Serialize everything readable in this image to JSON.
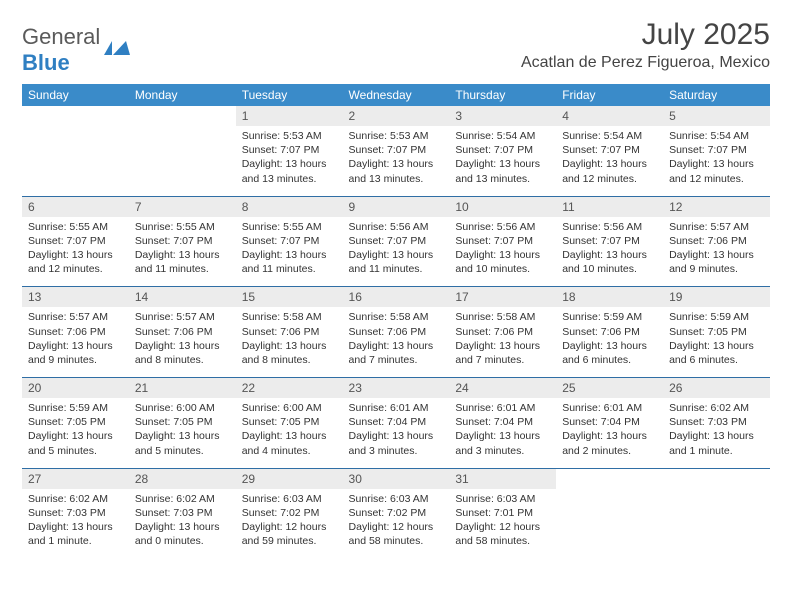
{
  "logo": {
    "text1": "General",
    "text2": "Blue"
  },
  "header": {
    "month": "July 2025",
    "location": "Acatlan de Perez Figueroa, Mexico"
  },
  "colors": {
    "header_bg": "#3a8bc9",
    "header_text": "#ffffff",
    "daynum_bg": "#ececec",
    "rule": "#2f6ea5",
    "brand_blue": "#2f7fc2",
    "text": "#333333"
  },
  "days_of_week": [
    "Sunday",
    "Monday",
    "Tuesday",
    "Wednesday",
    "Thursday",
    "Friday",
    "Saturday"
  ],
  "weeks": [
    [
      null,
      null,
      {
        "n": "1",
        "sunrise": "5:53 AM",
        "sunset": "7:07 PM",
        "daylight": "13 hours and 13 minutes."
      },
      {
        "n": "2",
        "sunrise": "5:53 AM",
        "sunset": "7:07 PM",
        "daylight": "13 hours and 13 minutes."
      },
      {
        "n": "3",
        "sunrise": "5:54 AM",
        "sunset": "7:07 PM",
        "daylight": "13 hours and 13 minutes."
      },
      {
        "n": "4",
        "sunrise": "5:54 AM",
        "sunset": "7:07 PM",
        "daylight": "13 hours and 12 minutes."
      },
      {
        "n": "5",
        "sunrise": "5:54 AM",
        "sunset": "7:07 PM",
        "daylight": "13 hours and 12 minutes."
      }
    ],
    [
      {
        "n": "6",
        "sunrise": "5:55 AM",
        "sunset": "7:07 PM",
        "daylight": "13 hours and 12 minutes."
      },
      {
        "n": "7",
        "sunrise": "5:55 AM",
        "sunset": "7:07 PM",
        "daylight": "13 hours and 11 minutes."
      },
      {
        "n": "8",
        "sunrise": "5:55 AM",
        "sunset": "7:07 PM",
        "daylight": "13 hours and 11 minutes."
      },
      {
        "n": "9",
        "sunrise": "5:56 AM",
        "sunset": "7:07 PM",
        "daylight": "13 hours and 11 minutes."
      },
      {
        "n": "10",
        "sunrise": "5:56 AM",
        "sunset": "7:07 PM",
        "daylight": "13 hours and 10 minutes."
      },
      {
        "n": "11",
        "sunrise": "5:56 AM",
        "sunset": "7:07 PM",
        "daylight": "13 hours and 10 minutes."
      },
      {
        "n": "12",
        "sunrise": "5:57 AM",
        "sunset": "7:06 PM",
        "daylight": "13 hours and 9 minutes."
      }
    ],
    [
      {
        "n": "13",
        "sunrise": "5:57 AM",
        "sunset": "7:06 PM",
        "daylight": "13 hours and 9 minutes."
      },
      {
        "n": "14",
        "sunrise": "5:57 AM",
        "sunset": "7:06 PM",
        "daylight": "13 hours and 8 minutes."
      },
      {
        "n": "15",
        "sunrise": "5:58 AM",
        "sunset": "7:06 PM",
        "daylight": "13 hours and 8 minutes."
      },
      {
        "n": "16",
        "sunrise": "5:58 AM",
        "sunset": "7:06 PM",
        "daylight": "13 hours and 7 minutes."
      },
      {
        "n": "17",
        "sunrise": "5:58 AM",
        "sunset": "7:06 PM",
        "daylight": "13 hours and 7 minutes."
      },
      {
        "n": "18",
        "sunrise": "5:59 AM",
        "sunset": "7:06 PM",
        "daylight": "13 hours and 6 minutes."
      },
      {
        "n": "19",
        "sunrise": "5:59 AM",
        "sunset": "7:05 PM",
        "daylight": "13 hours and 6 minutes."
      }
    ],
    [
      {
        "n": "20",
        "sunrise": "5:59 AM",
        "sunset": "7:05 PM",
        "daylight": "13 hours and 5 minutes."
      },
      {
        "n": "21",
        "sunrise": "6:00 AM",
        "sunset": "7:05 PM",
        "daylight": "13 hours and 5 minutes."
      },
      {
        "n": "22",
        "sunrise": "6:00 AM",
        "sunset": "7:05 PM",
        "daylight": "13 hours and 4 minutes."
      },
      {
        "n": "23",
        "sunrise": "6:01 AM",
        "sunset": "7:04 PM",
        "daylight": "13 hours and 3 minutes."
      },
      {
        "n": "24",
        "sunrise": "6:01 AM",
        "sunset": "7:04 PM",
        "daylight": "13 hours and 3 minutes."
      },
      {
        "n": "25",
        "sunrise": "6:01 AM",
        "sunset": "7:04 PM",
        "daylight": "13 hours and 2 minutes."
      },
      {
        "n": "26",
        "sunrise": "6:02 AM",
        "sunset": "7:03 PM",
        "daylight": "13 hours and 1 minute."
      }
    ],
    [
      {
        "n": "27",
        "sunrise": "6:02 AM",
        "sunset": "7:03 PM",
        "daylight": "13 hours and 1 minute."
      },
      {
        "n": "28",
        "sunrise": "6:02 AM",
        "sunset": "7:03 PM",
        "daylight": "13 hours and 0 minutes."
      },
      {
        "n": "29",
        "sunrise": "6:03 AM",
        "sunset": "7:02 PM",
        "daylight": "12 hours and 59 minutes."
      },
      {
        "n": "30",
        "sunrise": "6:03 AM",
        "sunset": "7:02 PM",
        "daylight": "12 hours and 58 minutes."
      },
      {
        "n": "31",
        "sunrise": "6:03 AM",
        "sunset": "7:01 PM",
        "daylight": "12 hours and 58 minutes."
      },
      null,
      null
    ]
  ],
  "labels": {
    "sunrise": "Sunrise:",
    "sunset": "Sunset:",
    "daylight": "Daylight:"
  }
}
